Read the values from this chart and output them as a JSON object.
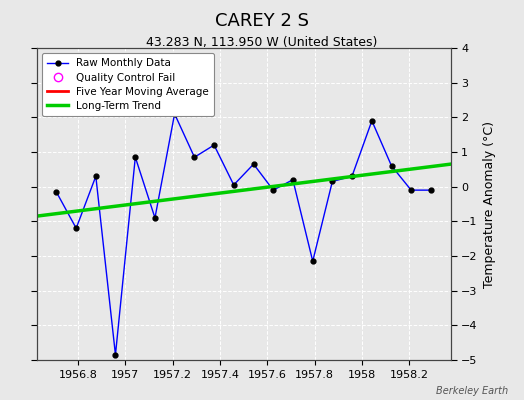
{
  "title": "CAREY 2 S",
  "subtitle": "43.283 N, 113.950 W (United States)",
  "ylabel": "Temperature Anomaly (°C)",
  "watermark": "Berkeley Earth",
  "background_color": "#e8e8e8",
  "plot_bg_color": "#e8e8e8",
  "ylim": [
    -5,
    4
  ],
  "xlim": [
    1956.625,
    1958.375
  ],
  "xticks": [
    1956.8,
    1957.0,
    1957.2,
    1957.4,
    1957.6,
    1957.8,
    1958.0,
    1958.2
  ],
  "yticks": [
    -5,
    -4,
    -3,
    -2,
    -1,
    0,
    1,
    2,
    3,
    4
  ],
  "raw_x": [
    1956.708,
    1956.792,
    1956.875,
    1956.958,
    1957.042,
    1957.125,
    1957.208,
    1957.292,
    1957.375,
    1957.458,
    1957.542,
    1957.625,
    1957.708,
    1957.792,
    1957.875,
    1957.958,
    1958.042,
    1958.125,
    1958.208,
    1958.292
  ],
  "raw_y": [
    -0.15,
    -1.2,
    0.3,
    -4.85,
    0.85,
    -0.9,
    2.1,
    0.85,
    1.2,
    0.05,
    0.65,
    -0.1,
    0.2,
    -2.15,
    0.15,
    0.3,
    1.9,
    0.6,
    -0.1,
    -0.1
  ],
  "trend_x": [
    1956.625,
    1958.375
  ],
  "trend_y": [
    -0.85,
    0.65
  ],
  "line_color": "#0000ff",
  "marker_color": "#000000",
  "trend_color": "#00cc00",
  "mavg_color": "#ff0000",
  "qc_color": "#ff00ff",
  "grid_color": "#ffffff",
  "title_fontsize": 13,
  "subtitle_fontsize": 9,
  "tick_fontsize": 8,
  "ylabel_fontsize": 9
}
